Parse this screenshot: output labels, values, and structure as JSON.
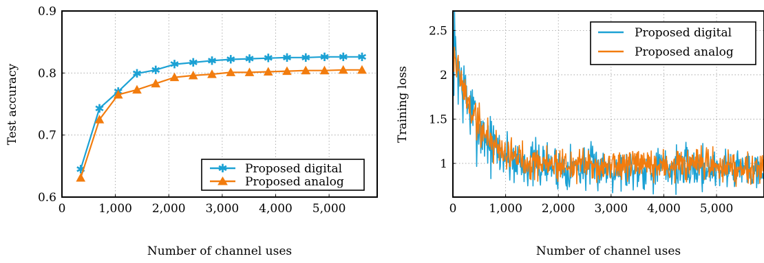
{
  "colors": {
    "digital": "#1ba1d4",
    "analog": "#f27c0e",
    "grid": "#9a9a9a"
  },
  "chart_data": [
    {
      "type": "line",
      "xlabel": "Number of channel uses",
      "ylabel": "Test accuracy",
      "xlim": [
        0,
        5900
      ],
      "ylim": [
        0.6,
        0.9
      ],
      "xticks": [
        0,
        1000,
        2000,
        3000,
        4000,
        5000
      ],
      "xtick_labels": [
        "0",
        "1,000",
        "2,000",
        "3,000",
        "4,000",
        "5,000"
      ],
      "yticks": [
        0.6,
        0.7,
        0.8,
        0.9
      ],
      "ytick_labels": [
        "0.6",
        "0.7",
        "0.8",
        "0.9"
      ],
      "grid": true,
      "legend_position": "bottom-right",
      "series": [
        {
          "name": "Proposed digital",
          "marker": "star",
          "x": [
            351,
            702,
            1053,
            1404,
            1755,
            2106,
            2457,
            2808,
            3159,
            3510,
            3861,
            4212,
            4563,
            4914,
            5265,
            5616
          ],
          "y": [
            0.645,
            0.743,
            0.77,
            0.799,
            0.805,
            0.814,
            0.817,
            0.82,
            0.822,
            0.823,
            0.824,
            0.825,
            0.825,
            0.826,
            0.826,
            0.826
          ]
        },
        {
          "name": "Proposed analog",
          "marker": "triangle",
          "x": [
            351,
            702,
            1053,
            1404,
            1755,
            2106,
            2457,
            2808,
            3159,
            3510,
            3861,
            4212,
            4563,
            4914,
            5265,
            5616
          ],
          "y": [
            0.631,
            0.725,
            0.765,
            0.773,
            0.783,
            0.793,
            0.796,
            0.798,
            0.801,
            0.801,
            0.802,
            0.803,
            0.804,
            0.804,
            0.805,
            0.805
          ]
        }
      ]
    },
    {
      "type": "line",
      "xlabel": "Number of channel uses",
      "ylabel": "Training loss",
      "xlim": [
        0,
        5900
      ],
      "ylim": [
        0.62,
        2.72
      ],
      "xticks": [
        0,
        1000,
        2000,
        3000,
        4000,
        5000
      ],
      "xtick_labels": [
        "0",
        "1,000",
        "2,000",
        "3,000",
        "4,000",
        "5,000"
      ],
      "yticks": [
        1,
        1.5,
        2,
        2.5
      ],
      "ytick_labels": [
        "1",
        "1.5",
        "2",
        "2.5"
      ],
      "grid": true,
      "legend_position": "top-right",
      "series": [
        {
          "name": "Proposed digital",
          "noisy": true,
          "step": 10,
          "trend": {
            "start": 2.35,
            "floor": 0.95,
            "decay": 430
          },
          "noise": {
            "base": 0.12,
            "amp": 0.14,
            "decay": 600
          },
          "seed": 7
        },
        {
          "name": "Proposed analog",
          "noisy": true,
          "step": 10,
          "trend": {
            "start": 2.3,
            "floor": 0.97,
            "decay": 470
          },
          "noise": {
            "base": 0.09,
            "amp": 0.05,
            "decay": 700
          },
          "seed": 19
        }
      ]
    }
  ]
}
